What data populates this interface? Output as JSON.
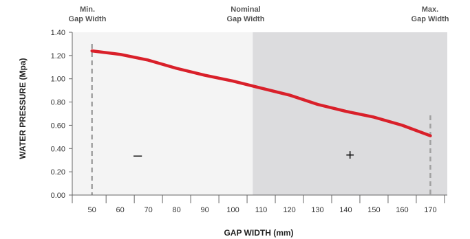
{
  "chart_data": {
    "type": "line",
    "title": "",
    "xlabel": "GAP WIDTH (mm)",
    "ylabel": "WATER PRESSURE (Mpa)",
    "xlim": [
      43,
      176
    ],
    "ylim": [
      0,
      1.4
    ],
    "x_ticks": [
      "50",
      "60",
      "70",
      "80",
      "90",
      "100",
      "110",
      "120",
      "130",
      "140",
      "150",
      "160",
      "170"
    ],
    "y_ticks": [
      "0.00",
      "0.20",
      "0.40",
      "0.60",
      "0.80",
      "1.00",
      "1.20",
      "1.40"
    ],
    "grid": false,
    "legend": "none",
    "series": [
      {
        "color": "#d9202a",
        "x": [
          50,
          60,
          70,
          80,
          90,
          100,
          110,
          120,
          130,
          140,
          150,
          160,
          170
        ],
        "y": [
          1.24,
          1.21,
          1.16,
          1.09,
          1.03,
          0.98,
          0.92,
          0.86,
          0.78,
          0.72,
          0.67,
          0.6,
          0.51
        ]
      }
    ],
    "regions": [
      {
        "x_from": 43,
        "x_to": 107,
        "color": "#f4f4f4",
        "sign": "–"
      },
      {
        "x_from": 107,
        "x_to": 176,
        "color": "#dcdcde",
        "sign": "+"
      }
    ],
    "markers": [
      {
        "x": 50,
        "label_line1": "Min.",
        "label_line2": "Gap Width"
      },
      {
        "x": 170,
        "label_line1": "Max.",
        "label_line2": "Gap Width"
      }
    ],
    "nominal_label": {
      "label_line1": "Nominal",
      "label_line2": "Gap Width"
    }
  }
}
